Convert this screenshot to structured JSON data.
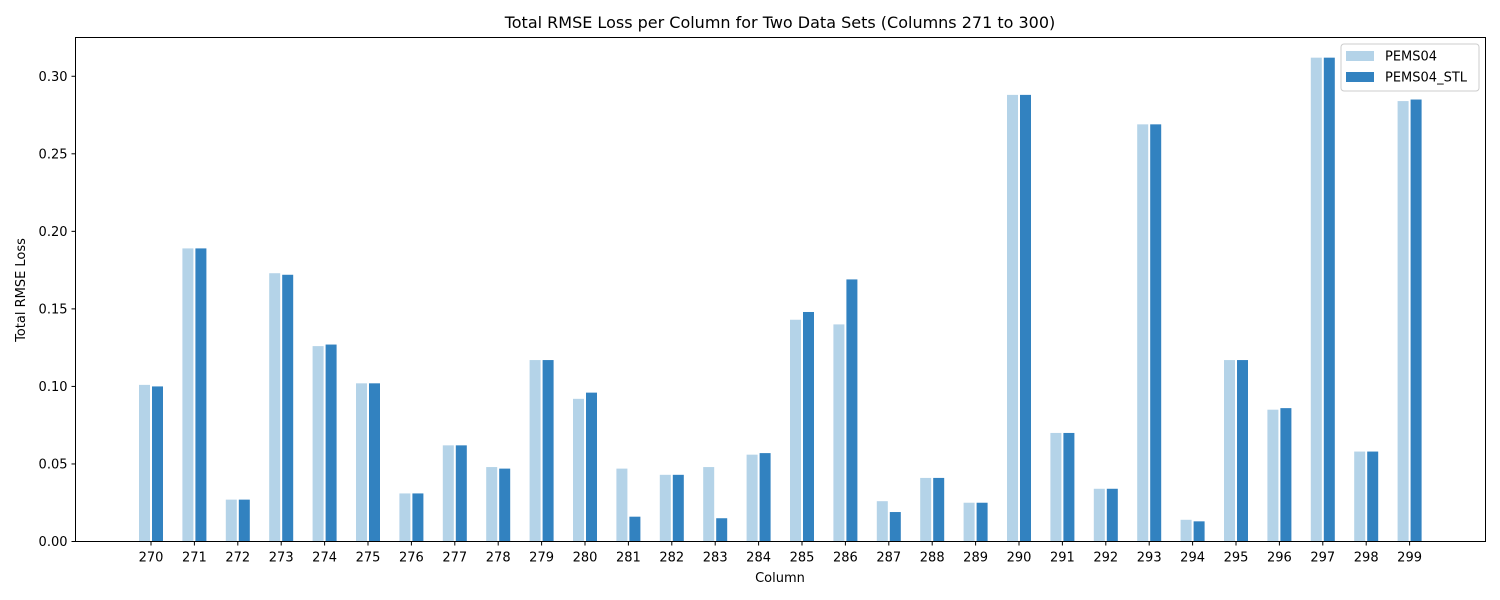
{
  "chart_data": {
    "type": "bar",
    "title": "Total RMSE Loss per Column for Two Data Sets (Columns 271 to 300)",
    "xlabel": "Column",
    "ylabel": "Total RMSE Loss",
    "ylim": [
      0,
      0.325
    ],
    "yticks": [
      "0.00",
      "0.05",
      "0.10",
      "0.15",
      "0.20",
      "0.25",
      "0.30"
    ],
    "grid": false,
    "legend_position": "top-right",
    "categories": [
      "270",
      "271",
      "272",
      "273",
      "274",
      "275",
      "276",
      "277",
      "278",
      "279",
      "280",
      "281",
      "282",
      "283",
      "284",
      "285",
      "286",
      "287",
      "288",
      "289",
      "290",
      "291",
      "292",
      "293",
      "294",
      "295",
      "296",
      "297",
      "298",
      "299"
    ],
    "series": [
      {
        "name": "PEMS04",
        "color": "#b4d3e8",
        "values": [
          0.101,
          0.189,
          0.027,
          0.173,
          0.126,
          0.102,
          0.031,
          0.062,
          0.048,
          0.117,
          0.092,
          0.047,
          0.043,
          0.048,
          0.056,
          0.143,
          0.14,
          0.026,
          0.041,
          0.025,
          0.288,
          0.07,
          0.034,
          0.269,
          0.014,
          0.117,
          0.085,
          0.312,
          0.058,
          0.284
        ]
      },
      {
        "name": "PEMS04_STL",
        "color": "#3282c0",
        "values": [
          0.1,
          0.189,
          0.027,
          0.172,
          0.127,
          0.102,
          0.031,
          0.062,
          0.047,
          0.117,
          0.096,
          0.016,
          0.043,
          0.015,
          0.057,
          0.148,
          0.169,
          0.019,
          0.041,
          0.025,
          0.288,
          0.07,
          0.034,
          0.269,
          0.013,
          0.117,
          0.086,
          0.312,
          0.058,
          0.285
        ]
      }
    ]
  }
}
